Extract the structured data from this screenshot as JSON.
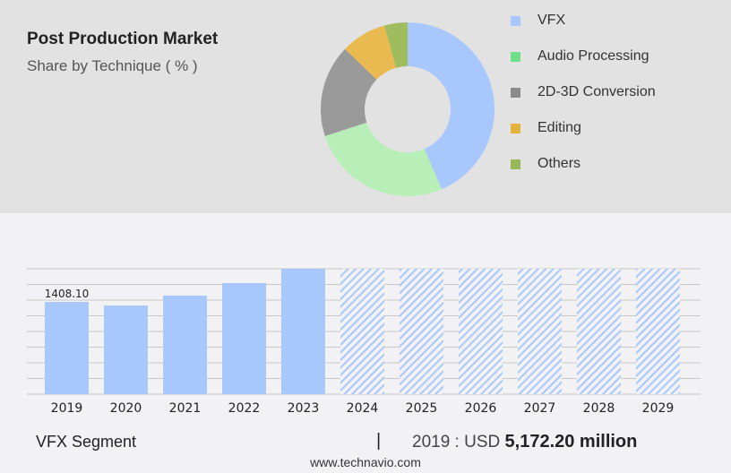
{
  "header": {
    "title": "Post Production Market",
    "subtitle": "Share by Technique ( % )"
  },
  "chart_data": [
    {
      "type": "pie",
      "title": "Share by Technique ( % )",
      "labels": [
        "VFX",
        "Audio Processing",
        "2D-3D Conversion",
        "Editing",
        "Others"
      ],
      "values": [
        43.6,
        26.4,
        17.2,
        8.5,
        4.3
      ],
      "colors": [
        "#a8c8fd",
        "#b8eeb8",
        "#9a9a9a",
        "#e8ba50",
        "#9fbc5e"
      ],
      "legend_colors": [
        "#a8c8fd",
        "#6ee08a",
        "#8a8a8a",
        "#e3b33c",
        "#9ab85a"
      ],
      "legend": "right"
    },
    {
      "type": "bar",
      "categories": [
        "2019",
        "2020",
        "2021",
        "2022",
        "2023",
        "2024",
        "2025",
        "2026",
        "2027",
        "2028",
        "2029"
      ],
      "values": [
        1408.1,
        1353,
        1504,
        1695,
        1914,
        null,
        null,
        null,
        null,
        null,
        null
      ],
      "forecast": [
        false,
        false,
        false,
        false,
        false,
        true,
        true,
        true,
        true,
        true,
        true
      ],
      "data_labels": {
        "2019": "1408.10"
      },
      "ylim": [
        0,
        1914
      ],
      "grid": true,
      "color": "#a8c8fd"
    }
  ],
  "footer": {
    "segment": "VFX Segment",
    "separator": "|",
    "year_text": "2019 : USD",
    "value": "5,172.20 million",
    "site": "www.technavio.com"
  }
}
